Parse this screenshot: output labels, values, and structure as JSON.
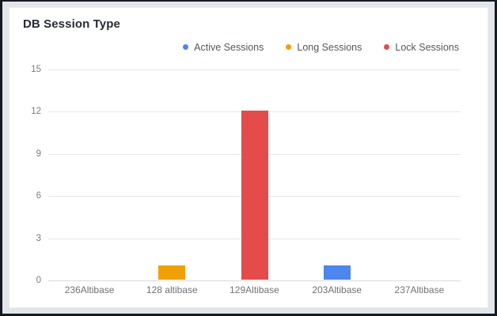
{
  "chart_data": {
    "type": "bar",
    "title": "DB Session Type",
    "categories": [
      "236Altibase",
      "128 altibase",
      "129Altibase",
      "203Altibase",
      "237Altibase"
    ],
    "series": [
      {
        "name": "Active Sessions",
        "color": "#4d86ec",
        "values": [
          0,
          0,
          0,
          1,
          0
        ]
      },
      {
        "name": "Long Sessions",
        "color": "#efa006",
        "values": [
          0,
          1,
          0,
          0,
          0
        ]
      },
      {
        "name": "Lock Sessions",
        "color": "#e44c4c",
        "values": [
          0,
          0,
          12,
          0,
          0
        ]
      }
    ],
    "xlabel": "",
    "ylabel": "",
    "ylim": [
      0,
      15
    ],
    "yticks": [
      0,
      3,
      6,
      9,
      12,
      15
    ],
    "grid": true,
    "legend_position": "top-right"
  },
  "colors": {
    "card_background": "#ffffff",
    "page_background": "#e3e6e9",
    "frame_border": "#151a24",
    "gridline": "#e7e8ea",
    "title_text": "#262b33",
    "axis_text": "#7b7e84"
  }
}
